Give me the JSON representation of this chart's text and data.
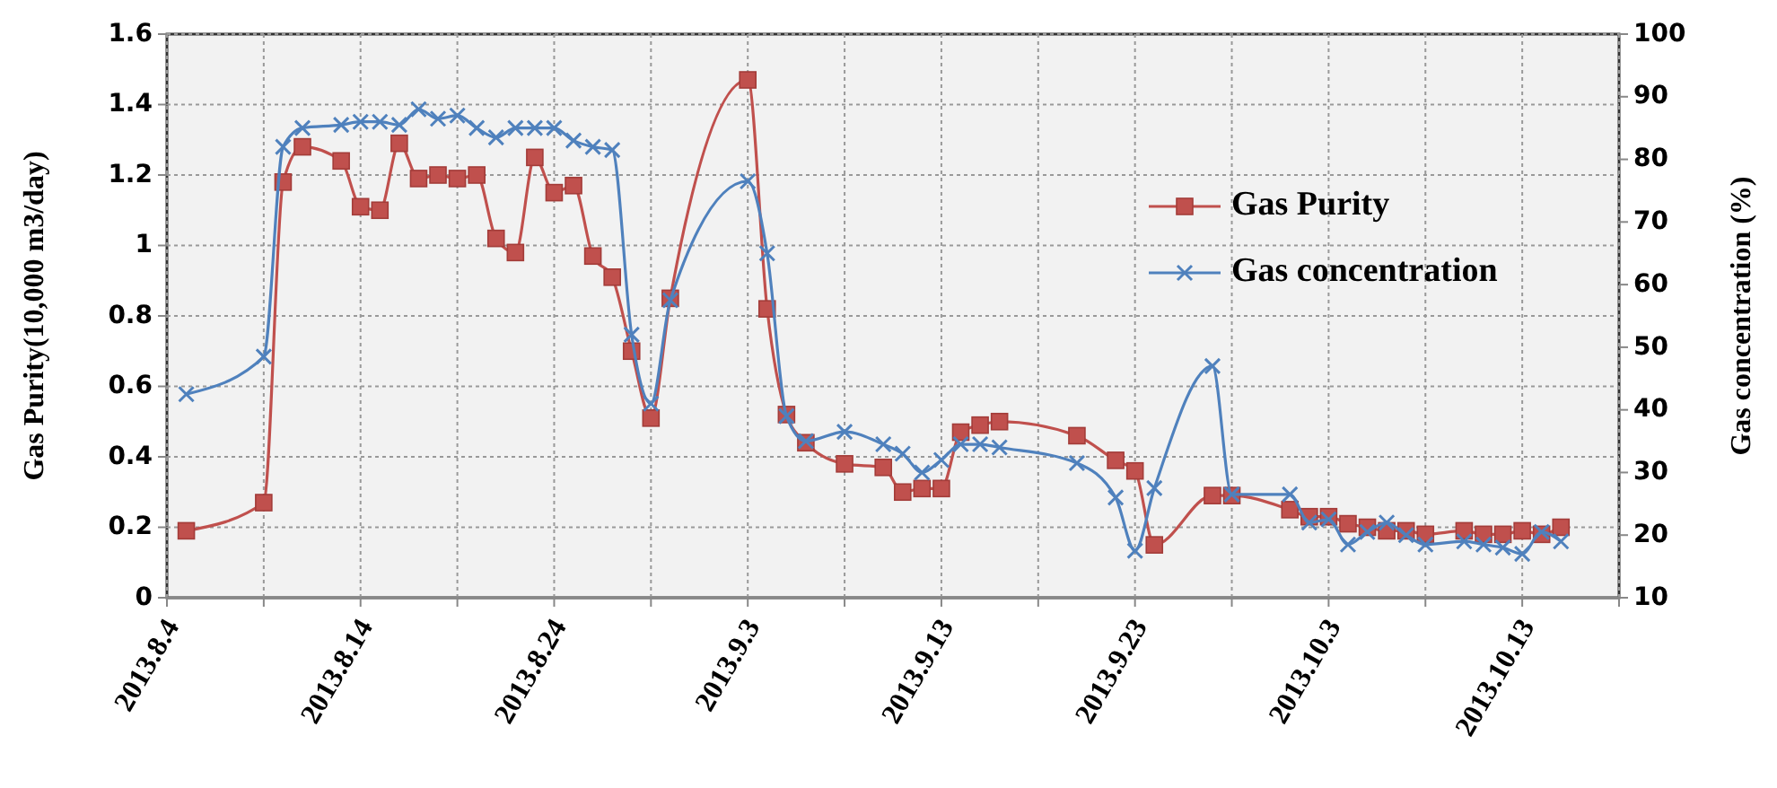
{
  "chart_data": {
    "type": "line",
    "ylabel": "Gas Purity(10,000 m3/day)",
    "y2label": "Gas concentration (%)",
    "xlim": [
      "2013-08-04",
      "2013-10-18"
    ],
    "xticks": [
      {
        "value": "2013-08-04",
        "label": "2013.8.4"
      },
      {
        "value": "2013-08-09",
        "label": null
      },
      {
        "value": "2013-08-14",
        "label": "2013.8.14"
      },
      {
        "value": "2013-08-19",
        "label": null
      },
      {
        "value": "2013-08-24",
        "label": "2013.8.24"
      },
      {
        "value": "2013-08-29",
        "label": null
      },
      {
        "value": "2013-09-03",
        "label": "2013.9.3"
      },
      {
        "value": "2013-09-08",
        "label": null
      },
      {
        "value": "2013-09-13",
        "label": "2013.9.13"
      },
      {
        "value": "2013-09-18",
        "label": null
      },
      {
        "value": "2013-09-23",
        "label": "2013.9.23"
      },
      {
        "value": "2013-09-28",
        "label": null
      },
      {
        "value": "2013-10-03",
        "label": "2013.10.3"
      },
      {
        "value": "2013-10-08",
        "label": null
      },
      {
        "value": "2013-10-13",
        "label": "2013.10.13"
      },
      {
        "value": "2013-10-18",
        "label": null
      }
    ],
    "ylim": [
      0,
      1.6
    ],
    "yticks": [
      0,
      0.2,
      0.4,
      0.6,
      0.8,
      1,
      1.2,
      1.4,
      1.6
    ],
    "y2lim": [
      10,
      100
    ],
    "y2ticks": [
      10,
      20,
      30,
      40,
      50,
      60,
      70,
      80,
      90,
      100
    ],
    "grid": true,
    "legend": "right",
    "line_style": "solid",
    "series": [
      {
        "name": "Gas Purity",
        "color": "#c0504d",
        "marker": "square",
        "x": [
          "2013-08-05",
          "2013-08-09",
          "2013-08-10",
          "2013-08-11",
          "2013-08-13",
          "2013-08-14",
          "2013-08-15",
          "2013-08-16",
          "2013-08-17",
          "2013-08-18",
          "2013-08-19",
          "2013-08-20",
          "2013-08-21",
          "2013-08-22",
          "2013-08-23",
          "2013-08-24",
          "2013-08-25",
          "2013-08-26",
          "2013-08-27",
          "2013-08-28",
          "2013-08-29",
          "2013-08-30",
          "2013-09-03",
          "2013-09-04",
          "2013-09-05",
          "2013-09-06",
          "2013-09-08",
          "2013-09-10",
          "2013-09-11",
          "2013-09-12",
          "2013-09-13",
          "2013-09-14",
          "2013-09-15",
          "2013-09-16",
          "2013-09-20",
          "2013-09-22",
          "2013-09-23",
          "2013-09-24",
          "2013-09-27",
          "2013-09-28",
          "2013-10-01",
          "2013-10-02",
          "2013-10-03",
          "2013-10-04",
          "2013-10-05",
          "2013-10-06",
          "2013-10-07",
          "2013-10-08",
          "2013-10-10",
          "2013-10-11",
          "2013-10-12",
          "2013-10-13",
          "2013-10-14",
          "2013-10-15"
        ],
        "values": [
          0.19,
          0.27,
          1.18,
          1.28,
          1.24,
          1.11,
          1.1,
          1.29,
          1.19,
          1.2,
          1.19,
          1.2,
          1.02,
          0.98,
          1.25,
          1.15,
          1.17,
          0.97,
          0.91,
          0.7,
          0.51,
          0.85,
          1.47,
          0.82,
          0.52,
          0.44,
          0.38,
          0.37,
          0.3,
          0.31,
          0.31,
          0.47,
          0.49,
          0.5,
          0.46,
          0.39,
          0.36,
          0.15,
          0.29,
          0.29,
          0.25,
          0.23,
          0.23,
          0.21,
          0.2,
          0.19,
          0.19,
          0.18,
          0.19,
          0.18,
          0.18,
          0.19,
          0.18,
          0.2
        ]
      },
      {
        "name": "Gas concentration",
        "color": "#4f81bd",
        "marker": "cross",
        "axis": "y2",
        "x": [
          "2013-08-05",
          "2013-08-09",
          "2013-08-10",
          "2013-08-11",
          "2013-08-13",
          "2013-08-14",
          "2013-08-15",
          "2013-08-16",
          "2013-08-17",
          "2013-08-18",
          "2013-08-19",
          "2013-08-20",
          "2013-08-21",
          "2013-08-22",
          "2013-08-23",
          "2013-08-24",
          "2013-08-25",
          "2013-08-26",
          "2013-08-27",
          "2013-08-28",
          "2013-08-29",
          "2013-08-30",
          "2013-09-03",
          "2013-09-04",
          "2013-09-05",
          "2013-09-06",
          "2013-09-08",
          "2013-09-10",
          "2013-09-11",
          "2013-09-12",
          "2013-09-13",
          "2013-09-14",
          "2013-09-15",
          "2013-09-16",
          "2013-09-20",
          "2013-09-22",
          "2013-09-23",
          "2013-09-24",
          "2013-09-27",
          "2013-09-28",
          "2013-10-01",
          "2013-10-02",
          "2013-10-03",
          "2013-10-04",
          "2013-10-05",
          "2013-10-06",
          "2013-10-07",
          "2013-10-08",
          "2013-10-10",
          "2013-10-11",
          "2013-10-12",
          "2013-10-13",
          "2013-10-14",
          "2013-10-15"
        ],
        "values": [
          42.5,
          48.5,
          82,
          85,
          85.5,
          86,
          86,
          85.5,
          88,
          86.5,
          87,
          85,
          83.5,
          85,
          85,
          85,
          83,
          82,
          81.5,
          52,
          41,
          57.5,
          76.5,
          65,
          39,
          35,
          36.5,
          34.5,
          33,
          30,
          32,
          34.5,
          34.5,
          34,
          31.5,
          26,
          17.5,
          27.5,
          47,
          26.5,
          26.5,
          22,
          22.5,
          18.5,
          20.5,
          22,
          20,
          18.5,
          19,
          18.5,
          18,
          17,
          20.5,
          19
        ]
      }
    ]
  }
}
